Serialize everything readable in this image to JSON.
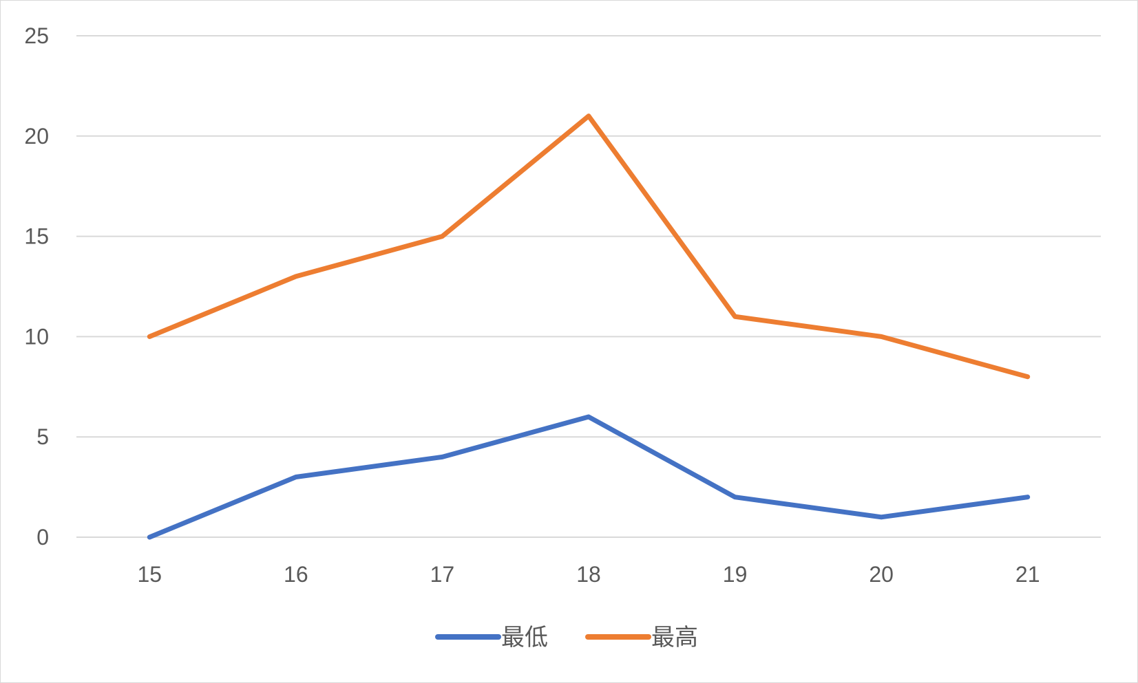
{
  "chart_data": {
    "type": "line",
    "title": "",
    "xlabel": "",
    "ylabel": "",
    "categories": [
      "15",
      "16",
      "17",
      "18",
      "19",
      "20",
      "21"
    ],
    "series": [
      {
        "name": "最低",
        "color": "#4472c4",
        "values": [
          0,
          3,
          4,
          6,
          2,
          1,
          2
        ]
      },
      {
        "name": "最高",
        "color": "#ed7d31",
        "values": [
          10,
          13,
          15,
          21,
          11,
          10,
          8
        ]
      }
    ],
    "ylim": [
      0,
      25
    ],
    "yticks": [
      0,
      5,
      10,
      15,
      20,
      25
    ],
    "grid": true,
    "legend_position": "bottom"
  }
}
